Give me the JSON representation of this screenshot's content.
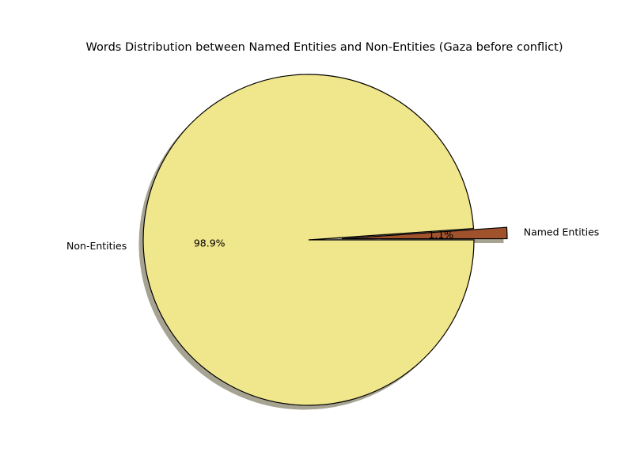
{
  "chart_data": {
    "type": "pie",
    "title": "Words Distribution between Named Entities and Non-Entities (Gaza before conflict)",
    "slices": [
      {
        "label": "Named Entities",
        "percent": 1.1,
        "autopct": "1.1%",
        "color": "#a0522d",
        "exploded": true
      },
      {
        "label": "Non-Entities",
        "percent": 98.9,
        "autopct": "98.9%",
        "color": "#f0e68c",
        "exploded": false
      }
    ],
    "start_angle_deg": 0,
    "shadow": true,
    "edge_color": "#000000",
    "shadow_color": "#a6a393"
  }
}
